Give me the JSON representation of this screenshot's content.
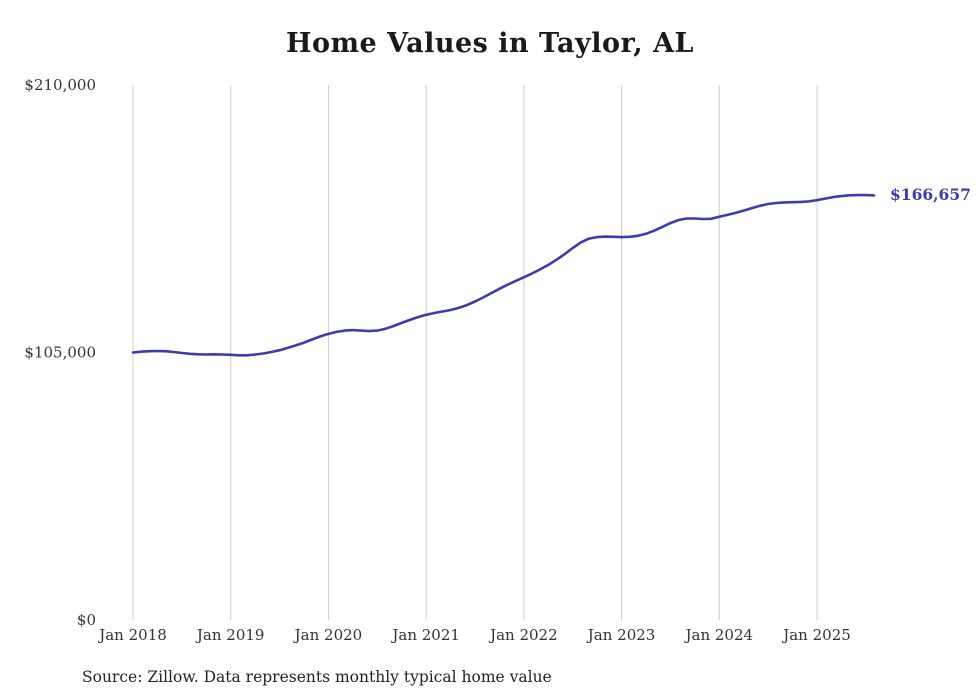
{
  "page": {
    "background": "#ffffff"
  },
  "chart": {
    "title": "Home Values in Taylor, AL",
    "source": "Source: Zillow. Data represents monthly typical home value",
    "end_label": "$166,657",
    "line_color": "#3c3cac",
    "grid_color": "#cccccc",
    "text_color": "#333333"
  },
  "chart_data": {
    "type": "line",
    "title": "Home Values in Taylor, AL",
    "xlabel": "",
    "ylabel": "",
    "ylim": [
      0,
      210000
    ],
    "grid": "vertical-only",
    "legend": "none",
    "x_tick_labels": [
      "Jan 2018",
      "Jan 2019",
      "Jan 2020",
      "Jan 2021",
      "Jan 2022",
      "Jan 2023",
      "Jan 2024",
      "Jan 2025"
    ],
    "y_ticks": [
      {
        "value": 0,
        "label": "$0"
      },
      {
        "value": 105000,
        "label": "$105,000"
      },
      {
        "value": 210000,
        "label": "$210,000"
      }
    ],
    "x_start": "2018-01",
    "x_end": "2025-08",
    "x_frequency": "monthly",
    "final_value": 166657,
    "annotation": "$166,657",
    "series": [
      {
        "name": "Typical home value",
        "monthly_values": [
          105000,
          105300,
          105500,
          105600,
          105500,
          105200,
          104800,
          104500,
          104300,
          104200,
          104300,
          104200,
          104100,
          103900,
          103900,
          104200,
          104600,
          105200,
          105900,
          106800,
          107800,
          108900,
          110100,
          111300,
          112300,
          113100,
          113600,
          113800,
          113600,
          113400,
          113600,
          114300,
          115400,
          116600,
          117800,
          118900,
          119800,
          120500,
          121100,
          121700,
          122500,
          123600,
          125000,
          126600,
          128300,
          130000,
          131600,
          133100,
          134500,
          136000,
          137600,
          139400,
          141400,
          143600,
          146000,
          148200,
          149700,
          150300,
          150500,
          150400,
          150300,
          150400,
          150800,
          151600,
          152800,
          154300,
          155800,
          157000,
          157600,
          157600,
          157400,
          157500,
          158300,
          159000,
          159800,
          160700,
          161700,
          162600,
          163300,
          163700,
          163900,
          164000,
          164100,
          164300,
          164800,
          165400,
          166000,
          166400,
          166700,
          166800,
          166800,
          166657
        ]
      }
    ]
  }
}
